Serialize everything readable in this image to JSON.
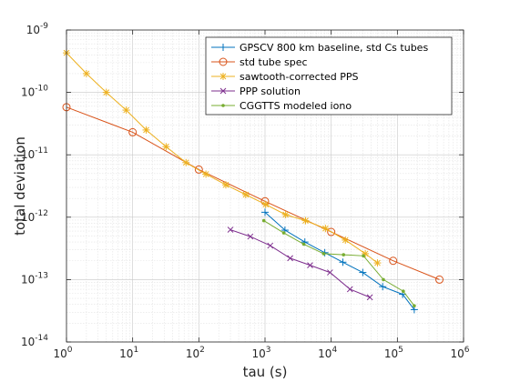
{
  "chart_data": {
    "type": "line",
    "xscale": "log",
    "yscale": "log",
    "xlim": [
      1,
      1000000
    ],
    "ylim": [
      1e-14,
      1e-09
    ],
    "xlabel": "tau (s)",
    "ylabel": "total deviation",
    "grid": "major and minor",
    "legend_position": "top-right",
    "x_ticks": [
      {
        "base": "10",
        "exp": "0"
      },
      {
        "base": "10",
        "exp": "1"
      },
      {
        "base": "10",
        "exp": "2"
      },
      {
        "base": "10",
        "exp": "3"
      },
      {
        "base": "10",
        "exp": "4"
      },
      {
        "base": "10",
        "exp": "5"
      },
      {
        "base": "10",
        "exp": "6"
      }
    ],
    "y_ticks": [
      {
        "base": "10",
        "exp": "-14"
      },
      {
        "base": "10",
        "exp": "-13"
      },
      {
        "base": "10",
        "exp": "-12"
      },
      {
        "base": "10",
        "exp": "-11"
      },
      {
        "base": "10",
        "exp": "-10"
      },
      {
        "base": "10",
        "exp": "-9"
      }
    ],
    "series": [
      {
        "name": "GPSCV 800 km baseline, std Cs tubes",
        "color": "#0072BD",
        "marker": "plus",
        "x": [
          1000,
          2000,
          4000,
          8000,
          15000,
          30000,
          60000,
          120000,
          180000
        ],
        "y": [
          1.2e-12,
          6.2e-13,
          4e-13,
          2.7e-13,
          1.9e-13,
          1.3e-13,
          7.7e-14,
          5.8e-14,
          3.3e-14
        ]
      },
      {
        "name": "std tube spec",
        "color": "#D95319",
        "marker": "circle",
        "x": [
          1,
          10,
          100,
          1000,
          10000,
          86400,
          432000
        ],
        "y": [
          5.8e-11,
          2.3e-11,
          5.8e-12,
          1.8e-12,
          5.8e-13,
          2e-13,
          1e-13
        ]
      },
      {
        "name": "sawtooth-corrected PPS",
        "color": "#EDB120",
        "marker": "asterisk",
        "x": [
          1,
          2,
          4,
          8,
          16,
          32,
          64,
          128,
          256,
          512,
          1024,
          2048,
          4096,
          8192,
          16384,
          32768,
          50000
        ],
        "y": [
          4.3e-10,
          2e-10,
          1e-10,
          5.2e-11,
          2.5e-11,
          1.35e-11,
          7.5e-12,
          4.9e-12,
          3.3e-12,
          2.3e-12,
          1.6e-12,
          1.1e-12,
          8.8e-13,
          6.6e-13,
          4.3e-13,
          2.6e-13,
          1.85e-13
        ]
      },
      {
        "name": "PPP solution",
        "color": "#7E2F8E",
        "marker": "cross",
        "x": [
          300,
          600,
          1200,
          2400,
          4800,
          9600,
          19200,
          38400
        ],
        "y": [
          6.3e-13,
          4.9e-13,
          3.5e-13,
          2.2e-13,
          1.7e-13,
          1.3e-13,
          7e-14,
          5.2e-14
        ]
      },
      {
        "name": "CGGTTS modeled iono",
        "color": "#77AC30",
        "marker": "dot",
        "x": [
          960,
          1920,
          3840,
          7680,
          15360,
          30720,
          61440,
          122880,
          180000
        ],
        "y": [
          8.8e-13,
          5.6e-13,
          3.7e-13,
          2.6e-13,
          2.5e-13,
          2.4e-13,
          1e-13,
          6.5e-14,
          3.8e-14
        ]
      }
    ]
  }
}
